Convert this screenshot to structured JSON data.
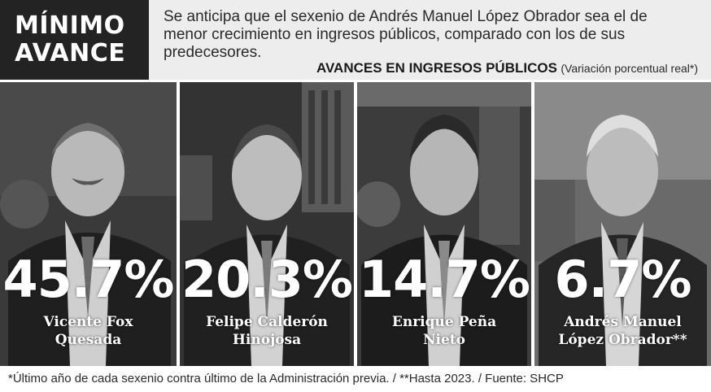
{
  "header": {
    "kicker_line1": "MÍNIMO",
    "kicker_line2": "AVANCE",
    "intro": "Se anticipa que el sexenio de Andrés Manuel López Obrador sea el de menor crecimiento en ingresos públicos, comparado con los de sus predecesores.",
    "subtitle_main": "AVANCES EN INGRESOS PÚBLICOS",
    "subtitle_note": "(Variación porcentual real*)"
  },
  "panels": [
    {
      "value": "45.7%",
      "name_line1": "Vicente Fox",
      "name_line2": "Quesada",
      "icon": "portrait-photo"
    },
    {
      "value": "20.3%",
      "name_line1": "Felipe Calderón",
      "name_line2": "Hinojosa",
      "icon": "portrait-photo"
    },
    {
      "value": "14.7%",
      "name_line1": "Enrique Peña",
      "name_line2": "Nieto",
      "icon": "portrait-photo"
    },
    {
      "value": "6.7%",
      "name_line1": "Andrés Manuel",
      "name_line2": "López Obrador**",
      "icon": "portrait-photo"
    }
  ],
  "footnote": "*Último año de cada sexenio contra último de la Administración previa. / **Hasta 2023. / Fuente: SHCP",
  "colors": {
    "header_dark": "#232323",
    "header_light": "#ededed",
    "text_on_photo": "#ffffff"
  }
}
